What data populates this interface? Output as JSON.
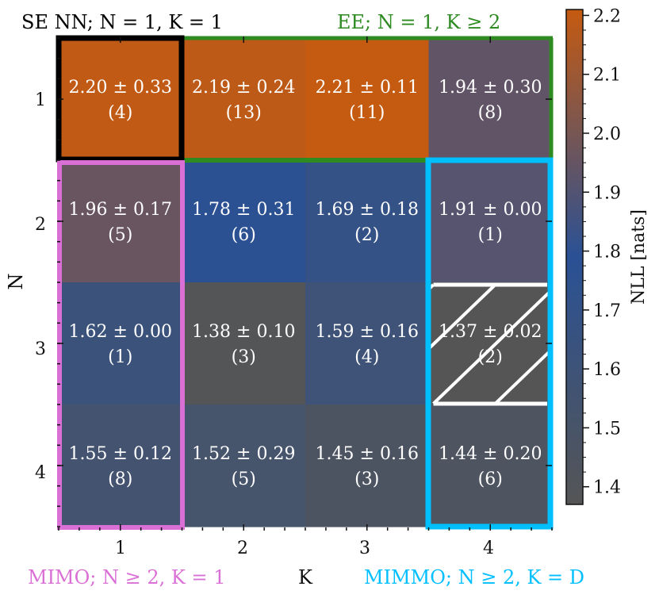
{
  "chart_data": {
    "type": "heatmap",
    "xlabel": "K",
    "ylabel": "N",
    "x_categories": [
      "1",
      "2",
      "3",
      "4"
    ],
    "y_categories": [
      "1",
      "2",
      "3",
      "4"
    ],
    "cells": [
      [
        {
          "mean": "2.20",
          "std": "0.33",
          "n": "(4)"
        },
        {
          "mean": "2.19",
          "std": "0.24",
          "n": "(13)"
        },
        {
          "mean": "2.21",
          "std": "0.11",
          "n": "(11)"
        },
        {
          "mean": "1.94",
          "std": "0.30",
          "n": "(8)"
        }
      ],
      [
        {
          "mean": "1.96",
          "std": "0.17",
          "n": "(5)"
        },
        {
          "mean": "1.78",
          "std": "0.31",
          "n": "(6)"
        },
        {
          "mean": "1.69",
          "std": "0.18",
          "n": "(2)"
        },
        {
          "mean": "1.91",
          "std": "0.00",
          "n": "(1)"
        }
      ],
      [
        {
          "mean": "1.62",
          "std": "0.00",
          "n": "(1)"
        },
        {
          "mean": "1.38",
          "std": "0.10",
          "n": "(3)"
        },
        {
          "mean": "1.59",
          "std": "0.16",
          "n": "(4)"
        },
        {
          "mean": "1.37",
          "std": "0.02",
          "n": "(2)",
          "hatched": true
        }
      ],
      [
        {
          "mean": "1.55",
          "std": "0.12",
          "n": "(8)"
        },
        {
          "mean": "1.52",
          "std": "0.29",
          "n": "(5)"
        },
        {
          "mean": "1.45",
          "std": "0.16",
          "n": "(3)"
        },
        {
          "mean": "1.44",
          "std": "0.20",
          "n": "(6)"
        }
      ]
    ],
    "colorbar": {
      "label": "NLL [nats]",
      "range": [
        1.37,
        2.21
      ],
      "ticks": [
        "1.4",
        "1.5",
        "1.6",
        "1.7",
        "1.8",
        "1.9",
        "2.0",
        "2.1",
        "2.2"
      ],
      "colors": [
        "#555555",
        "#2a5195",
        "#c55a11"
      ]
    },
    "annotations": {
      "se": {
        "text": "SE NN; N = 1, K = 1",
        "color": "#000000"
      },
      "ee": {
        "text": "EE; N = 1, K ≥ 2",
        "color": "#2e8b22"
      },
      "mimo": {
        "text": "MIMO; N ≥ 2, K = 1",
        "color": "#da70d6"
      },
      "mimmo": {
        "text": "MIMMO; N ≥ 2, K = D",
        "color": "#00bfff"
      }
    }
  }
}
